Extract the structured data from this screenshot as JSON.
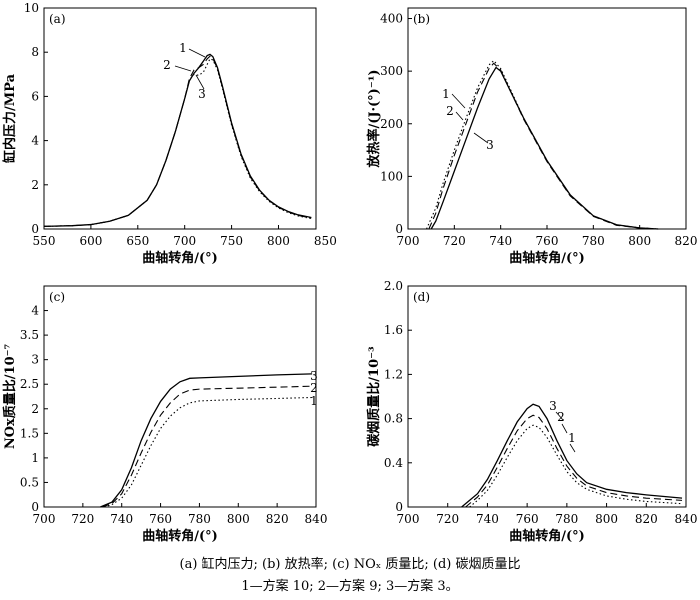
{
  "caption": {
    "line1": "(a) 缸内压力; (b) 放热率; (c) NOₓ 质量比; (d) 碳烟质量比",
    "line2": "1—方案 10; 2—方案 9; 3—方案 3。"
  },
  "chart_data": [
    {
      "id": "a",
      "type": "line",
      "panel_label": "(a)",
      "xlabel": "曲轴转角/(°)",
      "ylabel": "缸内压力/MPa",
      "xlim": [
        550,
        840
      ],
      "ylim": [
        0,
        10
      ],
      "xticks": [
        550,
        600,
        650,
        700,
        750,
        800,
        850
      ],
      "yticks": [
        0,
        2,
        4,
        6,
        8,
        10
      ],
      "series": [
        {
          "name": "1",
          "style": "solid",
          "x": [
            550,
            580,
            600,
            620,
            640,
            660,
            670,
            680,
            690,
            700,
            705,
            710,
            715,
            720,
            724,
            727,
            730,
            735,
            740,
            750,
            760,
            770,
            780,
            790,
            800,
            810,
            820,
            835
          ],
          "y": [
            0.12,
            0.15,
            0.2,
            0.35,
            0.62,
            1.3,
            2.0,
            3.1,
            4.4,
            5.9,
            6.7,
            7.05,
            7.3,
            7.6,
            7.85,
            7.9,
            7.8,
            7.3,
            6.5,
            4.8,
            3.4,
            2.4,
            1.75,
            1.3,
            1.0,
            0.8,
            0.65,
            0.52
          ]
        },
        {
          "name": "2",
          "style": "dashed",
          "x": [
            550,
            580,
            600,
            620,
            640,
            660,
            670,
            680,
            690,
            700,
            705,
            710,
            715,
            720,
            724,
            727,
            730,
            735,
            740,
            750,
            760,
            770,
            780,
            790,
            800,
            810,
            820,
            835
          ],
          "y": [
            0.12,
            0.15,
            0.2,
            0.35,
            0.62,
            1.3,
            2.0,
            3.1,
            4.4,
            5.9,
            6.8,
            7.2,
            7.3,
            7.45,
            7.7,
            7.82,
            7.72,
            7.25,
            6.45,
            4.75,
            3.35,
            2.35,
            1.72,
            1.28,
            0.98,
            0.78,
            0.62,
            0.5
          ]
        },
        {
          "name": "3",
          "style": "dotted",
          "x": [
            550,
            580,
            600,
            620,
            640,
            660,
            670,
            680,
            690,
            700,
            705,
            710,
            715,
            720,
            724,
            727,
            730,
            735,
            740,
            750,
            760,
            770,
            780,
            790,
            800,
            810,
            820,
            835
          ],
          "y": [
            0.12,
            0.15,
            0.2,
            0.35,
            0.62,
            1.3,
            2.0,
            3.1,
            4.4,
            5.9,
            6.75,
            7.0,
            6.95,
            7.1,
            7.45,
            7.7,
            7.65,
            7.2,
            6.4,
            4.7,
            3.3,
            2.3,
            1.68,
            1.25,
            0.95,
            0.75,
            0.6,
            0.47
          ]
        }
      ]
    },
    {
      "id": "b",
      "type": "line",
      "panel_label": "(b)",
      "xlabel": "曲轴转角/(°)",
      "ylabel": "放热率/(J·(°)⁻¹)",
      "xlim": [
        700,
        820
      ],
      "ylim": [
        0,
        420
      ],
      "xticks": [
        700,
        720,
        740,
        760,
        780,
        800,
        820
      ],
      "yticks": [
        0,
        100,
        200,
        300,
        400
      ],
      "series": [
        {
          "name": "1",
          "style": "solid",
          "x": [
            710,
            712,
            715,
            720,
            725,
            730,
            735,
            738,
            740,
            745,
            750,
            755,
            760,
            770,
            780,
            790,
            800,
            808
          ],
          "y": [
            0,
            15,
            50,
            110,
            170,
            230,
            285,
            307,
            300,
            255,
            210,
            170,
            130,
            65,
            25,
            8,
            2,
            0
          ]
        },
        {
          "name": "2",
          "style": "dashed",
          "x": [
            709,
            712,
            715,
            720,
            725,
            730,
            735,
            737,
            740,
            745,
            750,
            755,
            760,
            770,
            780,
            790,
            800,
            808
          ],
          "y": [
            0,
            30,
            75,
            140,
            200,
            260,
            305,
            315,
            302,
            255,
            208,
            168,
            128,
            63,
            24,
            7,
            2,
            0
          ]
        },
        {
          "name": "3",
          "style": "dotted",
          "x": [
            708,
            712,
            715,
            720,
            725,
            730,
            735,
            737,
            740,
            745,
            750,
            755,
            760,
            770,
            780,
            790,
            800,
            808
          ],
          "y": [
            0,
            40,
            85,
            150,
            210,
            268,
            312,
            320,
            305,
            258,
            210,
            170,
            130,
            64,
            25,
            8,
            2,
            0
          ]
        }
      ]
    },
    {
      "id": "c",
      "type": "line",
      "panel_label": "(c)",
      "xlabel": "曲轴转角/(°)",
      "ylabel": "NOx质量比/10⁻⁷",
      "xlim": [
        700,
        840
      ],
      "ylim": [
        0,
        4.5
      ],
      "xticks": [
        700,
        720,
        740,
        760,
        780,
        800,
        820,
        840
      ],
      "yticks": [
        0,
        0.5,
        1.0,
        1.5,
        2.0,
        2.5,
        3.0,
        3.5,
        4.0
      ],
      "series": [
        {
          "name": "3",
          "style": "solid",
          "x": [
            729,
            735,
            740,
            745,
            750,
            755,
            760,
            765,
            770,
            775,
            780,
            800,
            820,
            838
          ],
          "y": [
            0,
            0.1,
            0.35,
            0.8,
            1.35,
            1.8,
            2.15,
            2.4,
            2.55,
            2.62,
            2.63,
            2.66,
            2.69,
            2.71
          ]
        },
        {
          "name": "2",
          "style": "dashed",
          "x": [
            730,
            735,
            740,
            745,
            750,
            755,
            760,
            765,
            770,
            775,
            780,
            800,
            820,
            838
          ],
          "y": [
            0,
            0.07,
            0.27,
            0.65,
            1.1,
            1.52,
            1.87,
            2.12,
            2.3,
            2.38,
            2.4,
            2.42,
            2.44,
            2.46
          ]
        },
        {
          "name": "1",
          "style": "dotted",
          "x": [
            731,
            735,
            740,
            745,
            750,
            755,
            760,
            765,
            770,
            775,
            780,
            800,
            820,
            838
          ],
          "y": [
            0,
            0.05,
            0.18,
            0.45,
            0.85,
            1.25,
            1.6,
            1.85,
            2.02,
            2.12,
            2.16,
            2.19,
            2.21,
            2.23
          ]
        }
      ]
    },
    {
      "id": "d",
      "type": "line",
      "panel_label": "(d)",
      "xlabel": "曲轴转角/(°)",
      "ylabel": "碳烟质量比/10⁻³",
      "xlim": [
        700,
        840
      ],
      "ylim": [
        0,
        2.0
      ],
      "xticks": [
        700,
        720,
        740,
        760,
        780,
        800,
        820,
        840
      ],
      "yticks": [
        0,
        0.4,
        0.8,
        1.2,
        1.6,
        2.0
      ],
      "ytick_labels": [
        "0",
        "0.4",
        "0.8",
        "1.2",
        "1.6",
        "2.0"
      ],
      "series": [
        {
          "name": "3",
          "style": "solid",
          "x": [
            727,
            735,
            740,
            745,
            750,
            755,
            760,
            763,
            766,
            770,
            775,
            780,
            785,
            790,
            800,
            810,
            820,
            838
          ],
          "y": [
            0,
            0.12,
            0.25,
            0.42,
            0.6,
            0.77,
            0.89,
            0.93,
            0.91,
            0.8,
            0.6,
            0.42,
            0.3,
            0.22,
            0.16,
            0.13,
            0.11,
            0.08
          ]
        },
        {
          "name": "2",
          "style": "dashed",
          "x": [
            729,
            735,
            740,
            745,
            750,
            755,
            760,
            763,
            766,
            770,
            775,
            780,
            785,
            790,
            800,
            810,
            820,
            838
          ],
          "y": [
            0,
            0.09,
            0.2,
            0.36,
            0.53,
            0.69,
            0.8,
            0.83,
            0.81,
            0.71,
            0.53,
            0.37,
            0.26,
            0.19,
            0.13,
            0.1,
            0.08,
            0.06
          ]
        },
        {
          "name": "1",
          "style": "dotted",
          "x": [
            731,
            735,
            740,
            745,
            750,
            755,
            760,
            763,
            766,
            770,
            775,
            780,
            785,
            790,
            800,
            810,
            820,
            838
          ],
          "y": [
            0,
            0.06,
            0.15,
            0.29,
            0.45,
            0.6,
            0.71,
            0.74,
            0.72,
            0.63,
            0.47,
            0.32,
            0.22,
            0.16,
            0.1,
            0.07,
            0.05,
            0.03
          ]
        }
      ]
    }
  ]
}
